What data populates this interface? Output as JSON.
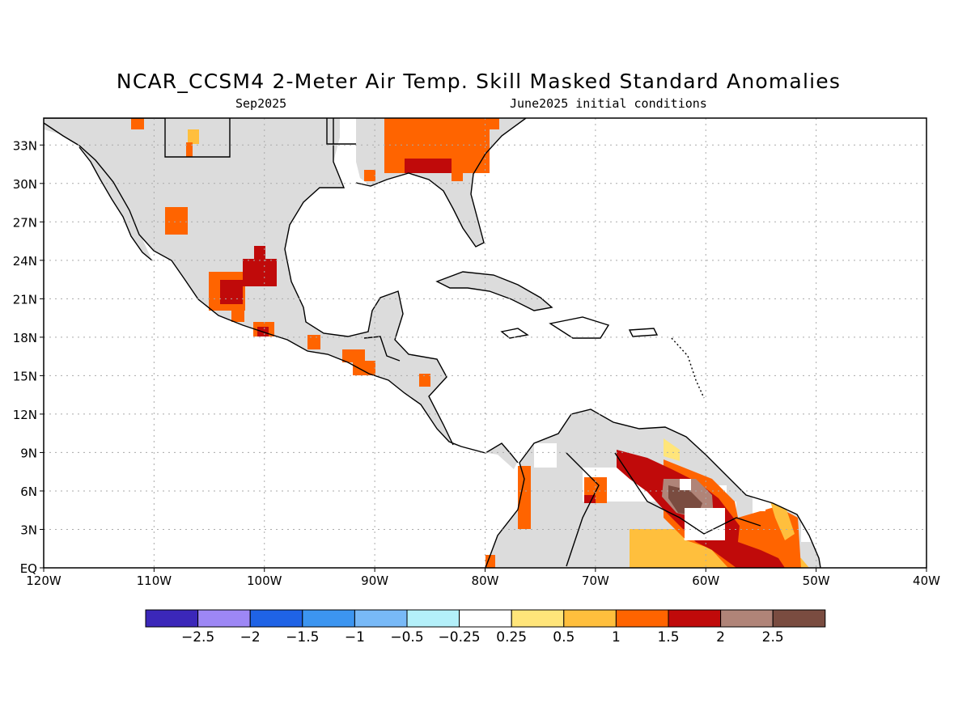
{
  "title": "NCAR_CCSM4 2-Meter Air Temp. Skill Masked Standard Anomalies",
  "subtitle_left": "Sep2025",
  "subtitle_right": "June2025 initial conditions",
  "map": {
    "lon_range": [
      -120,
      -40
    ],
    "lat_range": [
      0,
      35
    ],
    "lon_ticks": [
      "120W",
      "110W",
      "100W",
      "90W",
      "80W",
      "70W",
      "60W",
      "50W",
      "40W"
    ],
    "lat_ticks": [
      "EQ",
      "3N",
      "6N",
      "9N",
      "12N",
      "15N",
      "18N",
      "21N",
      "24N",
      "27N",
      "30N",
      "33N"
    ],
    "grid": "dotted",
    "no_skill_mask_color": "#dcdcdc",
    "land_outline_color": "#000000"
  },
  "colorbar": {
    "colors": [
      "#3b27b9",
      "#9d87f5",
      "#1f63e6",
      "#3c95f0",
      "#78b9f7",
      "#b4f0fa",
      "#ffffff",
      "#ffe57a",
      "#ffbf3d",
      "#ff6400",
      "#c00a0a",
      "#b08478",
      "#7a4c40"
    ],
    "labels": [
      "-2.5",
      "-2",
      "-1.5",
      "-1",
      "-0.5",
      "-0.25",
      "0.25",
      "0.5",
      "1",
      "1.5",
      "2",
      "2.5"
    ]
  }
}
